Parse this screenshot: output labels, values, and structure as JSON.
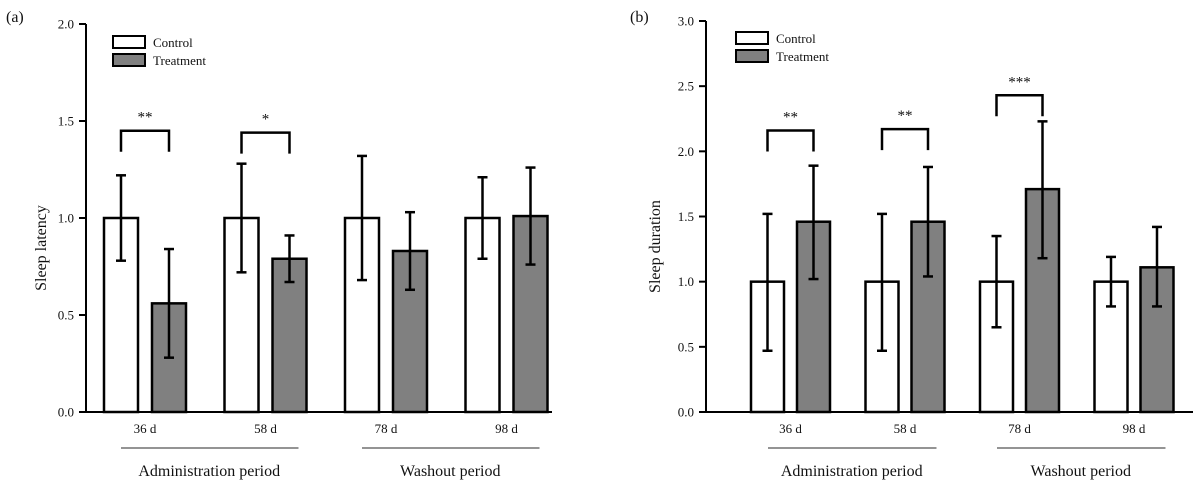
{
  "colors": {
    "control": "#ffffff",
    "treatment": "#808080",
    "stroke": "#000000",
    "group_line": "#555555"
  },
  "chart_data": [
    {
      "type": "bar",
      "panel_label": "(a)",
      "title": "",
      "xlabel": "",
      "ylabel": "Sleep latency",
      "ylim": [
        0,
        2.0
      ],
      "yticks": [
        0.0,
        0.5,
        1.0,
        1.5,
        2.0
      ],
      "ytick_labels": [
        "0.0",
        "0.5",
        "1.0",
        "1.5",
        "2.0"
      ],
      "grid": false,
      "legend": {
        "placement": "top-left",
        "entries": [
          "Control",
          "Treatment"
        ]
      },
      "categories": [
        "36 d",
        "58 d",
        "78 d",
        "98 d"
      ],
      "series": [
        {
          "name": "Control",
          "values": [
            1.0,
            1.0,
            1.0,
            1.0
          ],
          "error_upper": [
            1.22,
            1.28,
            1.32,
            1.21
          ],
          "error_lower": [
            0.78,
            0.72,
            0.68,
            0.79
          ]
        },
        {
          "name": "Treatment",
          "values": [
            0.56,
            0.79,
            0.83,
            1.01
          ],
          "error_upper": [
            0.84,
            0.91,
            1.03,
            1.26
          ],
          "error_lower": [
            0.28,
            0.67,
            0.63,
            0.76
          ]
        }
      ],
      "significance": [
        {
          "category": "36 d",
          "label": "**",
          "level": 1.45
        },
        {
          "category": "58 d",
          "label": "*",
          "level": 1.44
        }
      ],
      "groups": [
        {
          "label": "Administration period",
          "categories": [
            "36 d",
            "58 d"
          ]
        },
        {
          "label": "Washout period",
          "categories": [
            "78 d",
            "98 d"
          ]
        }
      ]
    },
    {
      "type": "bar",
      "panel_label": "(b)",
      "title": "",
      "xlabel": "",
      "ylabel": "Sleep duration",
      "ylim": [
        0,
        3.0
      ],
      "yticks": [
        0.0,
        0.5,
        1.0,
        1.5,
        2.0,
        2.5,
        3.0
      ],
      "ytick_labels": [
        "0.0",
        "0.5",
        "1.0",
        "1.5",
        "2.0",
        "2.5",
        "3.0"
      ],
      "grid": false,
      "legend": {
        "placement": "top-left",
        "entries": [
          "Control",
          "Treatment"
        ]
      },
      "categories": [
        "36 d",
        "58 d",
        "78 d",
        "98 d"
      ],
      "series": [
        {
          "name": "Control",
          "values": [
            1.0,
            1.0,
            1.0,
            1.0
          ],
          "error_upper": [
            1.52,
            1.52,
            1.35,
            1.19
          ],
          "error_lower": [
            0.47,
            0.47,
            0.65,
            0.81
          ]
        },
        {
          "name": "Treatment",
          "values": [
            1.46,
            1.46,
            1.71,
            1.11
          ],
          "error_upper": [
            1.89,
            1.88,
            2.23,
            1.42
          ],
          "error_lower": [
            1.02,
            1.04,
            1.18,
            0.81
          ]
        }
      ],
      "significance": [
        {
          "category": "36 d",
          "label": "**",
          "level": 2.16
        },
        {
          "category": "58 d",
          "label": "**",
          "level": 2.17
        },
        {
          "category": "78 d",
          "label": "***",
          "level": 2.43
        }
      ],
      "groups": [
        {
          "label": "Administration period",
          "categories": [
            "36 d",
            "58 d"
          ]
        },
        {
          "label": "Washout period",
          "categories": [
            "78 d",
            "98 d"
          ]
        }
      ]
    }
  ]
}
